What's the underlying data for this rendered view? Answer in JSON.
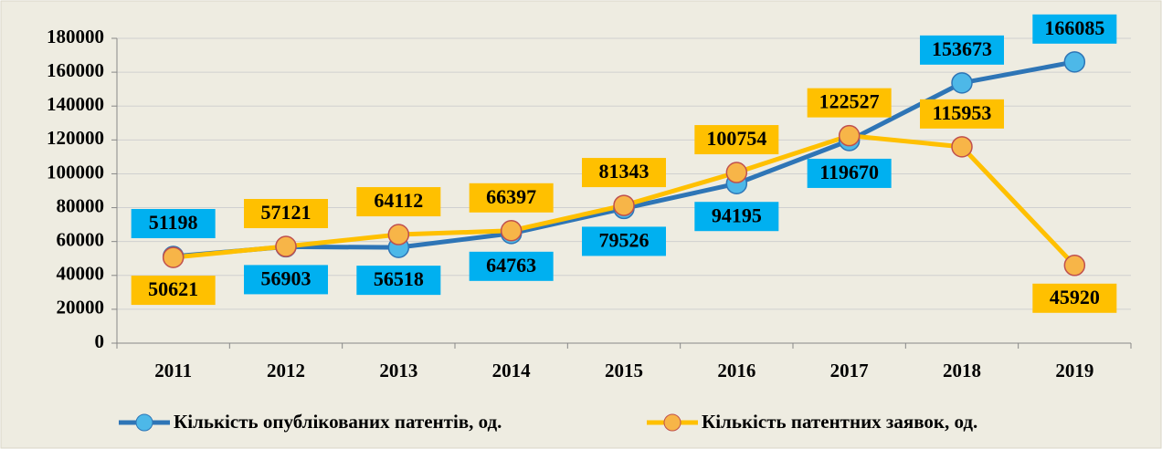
{
  "chart_data": {
    "type": "line",
    "categories": [
      "2011",
      "2012",
      "2013",
      "2014",
      "2015",
      "2016",
      "2017",
      "2018",
      "2019"
    ],
    "series": [
      {
        "name": "Кількість опублікованих патентів, од.",
        "color": "#2e75b6",
        "marker_color": "#4db8e8",
        "label_color": "#00b0f0",
        "values": [
          51198,
          56903,
          56518,
          64763,
          79526,
          94195,
          119670,
          153673,
          166085
        ]
      },
      {
        "name": "Кількість патентних заявок, од.",
        "color": "#ffc000",
        "marker_color": "#f7b548",
        "label_color": "#ffc000",
        "values": [
          50621,
          57121,
          64112,
          66397,
          81343,
          100754,
          122527,
          115953,
          45920
        ]
      }
    ],
    "ylim": [
      0,
      180000
    ],
    "yticks": [
      0,
      20000,
      40000,
      60000,
      80000,
      100000,
      120000,
      140000,
      160000,
      180000
    ],
    "grid": true,
    "legend": "bottom"
  }
}
